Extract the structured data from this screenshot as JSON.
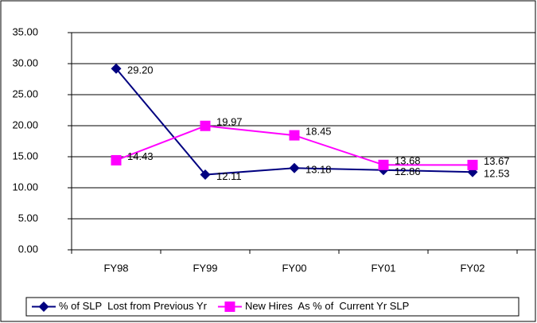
{
  "chart_data": {
    "type": "line",
    "categories": [
      "FY98",
      "FY99",
      "FY00",
      "FY01",
      "FY02"
    ],
    "series": [
      {
        "name": "% of SLP  Lost from Previous Yr",
        "color": "#000080",
        "marker": "diamond",
        "values": [
          29.2,
          12.11,
          13.18,
          12.86,
          12.53
        ],
        "value_labels": [
          "29.20",
          "12.11",
          "13.18",
          "12.86",
          "12.53"
        ]
      },
      {
        "name": "New Hires  As % of  Current Yr SLP",
        "color": "#ff00ff",
        "marker": "square",
        "values": [
          14.43,
          19.97,
          18.45,
          13.68,
          13.67
        ],
        "value_labels": [
          "14.43",
          "19.97",
          "18.45",
          "13.68",
          "13.67"
        ]
      }
    ],
    "ylim": [
      0,
      35
    ],
    "yticks": [
      {
        "value": 0,
        "label": "0.00"
      },
      {
        "value": 5,
        "label": "5.00"
      },
      {
        "value": 10,
        "label": "10.00"
      },
      {
        "value": 15,
        "label": "15.00"
      },
      {
        "value": 20,
        "label": "20.00"
      },
      {
        "value": 25,
        "label": "25.00"
      },
      {
        "value": 30,
        "label": "30.00"
      },
      {
        "value": 35,
        "label": "35.00"
      }
    ],
    "grid": true,
    "legend": "bottom"
  }
}
